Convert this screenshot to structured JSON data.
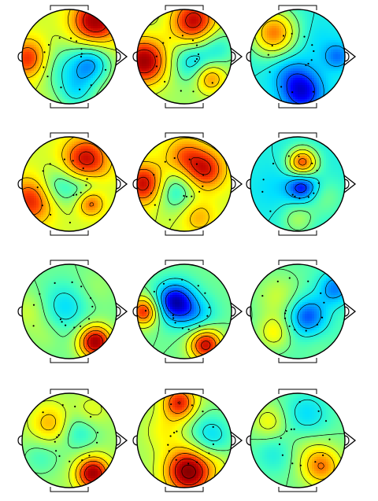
{
  "colorscale": {
    "name": "jet",
    "stops": [
      "#00007f",
      "#0000ff",
      "#0080ff",
      "#00e0ff",
      "#40ffbf",
      "#a0ff60",
      "#ffff00",
      "#ffb000",
      "#ff4000",
      "#c00000",
      "#800000"
    ]
  },
  "grid": {
    "rows": 4,
    "cols": 3
  },
  "maps": [
    {
      "id": "r1c1",
      "bg": 0.55,
      "blobs": [
        [
          0.55,
          -0.75,
          0.95,
          0.35
        ],
        [
          -0.85,
          0.05,
          0.85,
          0.3
        ],
        [
          0.45,
          0.15,
          0.25,
          0.3
        ],
        [
          0.15,
          0.75,
          0.35,
          0.3
        ],
        [
          -0.25,
          0.2,
          0.4,
          0.35
        ]
      ]
    },
    {
      "id": "r1c2",
      "bg": 0.5,
      "blobs": [
        [
          0.2,
          -0.75,
          0.9,
          0.35
        ],
        [
          -0.85,
          0.1,
          0.95,
          0.35
        ],
        [
          0.55,
          0.45,
          0.75,
          0.22
        ],
        [
          0.15,
          0.1,
          0.3,
          0.3
        ],
        [
          0.7,
          -0.2,
          0.35,
          0.28
        ]
      ]
    },
    {
      "id": "r1c3",
      "bg": 0.35,
      "blobs": [
        [
          -0.5,
          -0.5,
          0.75,
          0.35
        ],
        [
          0.1,
          0.75,
          0.08,
          0.32
        ],
        [
          0.4,
          -0.3,
          0.3,
          0.35
        ],
        [
          -0.2,
          0.3,
          0.25,
          0.3
        ],
        [
          0.85,
          0.0,
          0.2,
          0.2
        ]
      ]
    },
    {
      "id": "r2c1",
      "bg": 0.55,
      "blobs": [
        [
          0.35,
          -0.5,
          0.9,
          0.35
        ],
        [
          -0.8,
          0.35,
          0.85,
          0.35
        ],
        [
          0.45,
          0.4,
          0.8,
          0.2
        ],
        [
          -0.2,
          0.05,
          0.35,
          0.3
        ],
        [
          0.35,
          0.05,
          0.4,
          0.25
        ]
      ]
    },
    {
      "id": "r2c2",
      "bg": 0.55,
      "blobs": [
        [
          0.45,
          -0.3,
          0.85,
          0.3
        ],
        [
          -0.85,
          0.0,
          0.9,
          0.3
        ],
        [
          0.0,
          -0.6,
          0.75,
          0.3
        ],
        [
          -0.2,
          0.15,
          0.35,
          0.3
        ],
        [
          0.3,
          0.7,
          0.7,
          0.25
        ]
      ]
    },
    {
      "id": "r2c3",
      "bg": 0.35,
      "blobs": [
        [
          0.1,
          -0.45,
          0.8,
          0.22
        ],
        [
          0.1,
          0.05,
          0.08,
          0.22
        ],
        [
          -0.5,
          0.1,
          0.3,
          0.35
        ],
        [
          0.6,
          0.3,
          0.45,
          0.3
        ],
        [
          0.0,
          0.75,
          0.5,
          0.25
        ]
      ]
    },
    {
      "id": "r3c1",
      "bg": 0.45,
      "blobs": [
        [
          0.55,
          0.65,
          0.95,
          0.25
        ],
        [
          -0.1,
          -0.1,
          0.3,
          0.35
        ],
        [
          -0.5,
          0.5,
          0.5,
          0.25
        ],
        [
          0.55,
          -0.5,
          0.5,
          0.3
        ],
        [
          -0.85,
          0.0,
          0.55,
          0.3
        ]
      ]
    },
    {
      "id": "r3c2",
      "bg": 0.45,
      "blobs": [
        [
          -0.2,
          -0.2,
          0.05,
          0.3
        ],
        [
          0.45,
          0.7,
          0.9,
          0.25
        ],
        [
          -0.85,
          0.0,
          0.85,
          0.22
        ],
        [
          0.3,
          0.1,
          0.3,
          0.3
        ],
        [
          0.15,
          -0.7,
          0.45,
          0.25
        ]
      ]
    },
    {
      "id": "r3c3",
      "bg": 0.42,
      "blobs": [
        [
          0.2,
          0.1,
          0.15,
          0.3
        ],
        [
          -0.4,
          -0.3,
          0.55,
          0.35
        ],
        [
          -0.5,
          0.45,
          0.6,
          0.25
        ],
        [
          0.8,
          -0.5,
          0.2,
          0.25
        ],
        [
          0.4,
          0.7,
          0.45,
          0.25
        ]
      ]
    },
    {
      "id": "r4c1",
      "bg": 0.5,
      "blobs": [
        [
          0.5,
          0.7,
          0.95,
          0.25
        ],
        [
          -0.4,
          -0.35,
          0.7,
          0.3
        ],
        [
          -0.6,
          0.35,
          0.4,
          0.3
        ],
        [
          0.2,
          -0.2,
          0.35,
          0.3
        ],
        [
          0.45,
          -0.6,
          0.6,
          0.25
        ]
      ]
    },
    {
      "id": "r4c2",
      "bg": 0.5,
      "blobs": [
        [
          0.1,
          0.65,
          1.0,
          0.35
        ],
        [
          -0.1,
          -0.8,
          0.85,
          0.25
        ],
        [
          0.55,
          -0.1,
          0.3,
          0.35
        ],
        [
          -0.4,
          -0.2,
          0.6,
          0.3
        ],
        [
          0.7,
          0.45,
          0.55,
          0.2
        ]
      ]
    },
    {
      "id": "r4c3",
      "bg": 0.45,
      "blobs": [
        [
          0.2,
          -0.55,
          0.3,
          0.35
        ],
        [
          0.5,
          0.55,
          0.75,
          0.3
        ],
        [
          -0.5,
          0.3,
          0.35,
          0.3
        ],
        [
          -0.6,
          -0.4,
          0.6,
          0.25
        ],
        [
          0.15,
          0.1,
          0.5,
          0.3
        ]
      ]
    }
  ]
}
